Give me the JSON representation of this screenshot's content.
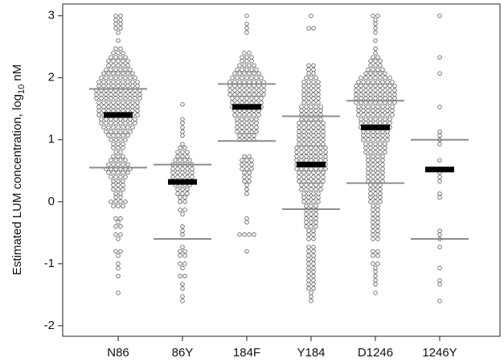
{
  "chart_data": {
    "type": "beeswarm",
    "y_label": {
      "main": "Estimated LUM concentration, log",
      "sub": "10",
      "unit": "nM"
    },
    "categories": [
      "N86",
      "86Y",
      "184F",
      "Y184",
      "D1246",
      "1246Y"
    ],
    "ylim": [
      -2.17,
      3.19
    ],
    "yticks": [
      -2,
      -1,
      0,
      1,
      2,
      3
    ],
    "dot_color": "#555555",
    "median_color": "#000000",
    "quartile_color": "#8c8c8c",
    "medians": [
      1.4,
      0.32,
      1.53,
      0.6,
      1.2,
      0.52
    ],
    "q1": [
      0.55,
      -0.6,
      0.98,
      -0.12,
      0.3,
      -0.6
    ],
    "q3": [
      1.82,
      0.6,
      1.9,
      1.38,
      1.63,
      1.0
    ],
    "values": [
      [
        3,
        3,
        2.93,
        2.93,
        2.87,
        2.87,
        2.8,
        2.8,
        2.73,
        2.6,
        2.47,
        2.47,
        2.4,
        2.4,
        2.4,
        2.33,
        2.33,
        2.33,
        2.33,
        2.27,
        2.27,
        2.27,
        2.27,
        2.27,
        2.2,
        2.2,
        2.2,
        2.2,
        2.2,
        2.13,
        2.13,
        2.13,
        2.13,
        2.13,
        2.13,
        2.07,
        2.07,
        2.07,
        2.07,
        2.07,
        2.07,
        2.07,
        2,
        2,
        2,
        2,
        2,
        2,
        2,
        2,
        1.93,
        1.93,
        1.93,
        1.93,
        1.93,
        1.93,
        1.93,
        1.93,
        1.93,
        1.87,
        1.87,
        1.87,
        1.87,
        1.87,
        1.87,
        1.87,
        1.87,
        1.87,
        1.8,
        1.8,
        1.8,
        1.8,
        1.8,
        1.8,
        1.8,
        1.8,
        1.8,
        1.8,
        1.73,
        1.73,
        1.73,
        1.73,
        1.73,
        1.73,
        1.73,
        1.73,
        1.73,
        1.73,
        1.67,
        1.67,
        1.67,
        1.67,
        1.67,
        1.67,
        1.67,
        1.67,
        1.67,
        1.67,
        1.6,
        1.6,
        1.6,
        1.6,
        1.6,
        1.6,
        1.6,
        1.6,
        1.6,
        1.53,
        1.53,
        1.53,
        1.53,
        1.53,
        1.53,
        1.53,
        1.53,
        1.53,
        1.47,
        1.47,
        1.47,
        1.47,
        1.47,
        1.47,
        1.47,
        1.47,
        1.47,
        1.4,
        1.4,
        1.4,
        1.4,
        1.4,
        1.4,
        1.4,
        1.4,
        1.4,
        1.33,
        1.33,
        1.33,
        1.33,
        1.33,
        1.33,
        1.33,
        1.33,
        1.27,
        1.27,
        1.27,
        1.27,
        1.27,
        1.27,
        1.27,
        1.27,
        1.2,
        1.2,
        1.2,
        1.2,
        1.2,
        1.2,
        1.2,
        1.13,
        1.13,
        1.13,
        1.13,
        1.13,
        1.13,
        1.07,
        1.07,
        1.07,
        1.07,
        1.07,
        1,
        1,
        1,
        1,
        0.93,
        0.93,
        0.93,
        0.87,
        0.87,
        0.87,
        0.8,
        0.8,
        0.73,
        0.73,
        0.73,
        0.67,
        0.67,
        0.67,
        0.67,
        0.6,
        0.6,
        0.6,
        0.6,
        0.6,
        0.53,
        0.53,
        0.53,
        0.53,
        0.53,
        0.53,
        0.47,
        0.47,
        0.47,
        0.47,
        0.47,
        0.4,
        0.4,
        0.4,
        0.4,
        0.33,
        0.33,
        0.33,
        0.27,
        0.27,
        0.27,
        0.2,
        0.2,
        0.2,
        0.13,
        0.13,
        0.07,
        0.07,
        0,
        0,
        0,
        0,
        -0.07,
        -0.07,
        -0.07,
        -0.27,
        -0.27,
        -0.33,
        -0.4,
        -0.4,
        -0.53,
        -0.53,
        -0.6,
        -0.8,
        -0.8,
        -0.87,
        -1,
        -1.07,
        -1.2,
        -1.47
      ],
      [
        1.57,
        1.33,
        1.27,
        1.2,
        1.13,
        1.07,
        0.93,
        0.87,
        0.87,
        0.8,
        0.8,
        0.8,
        0.73,
        0.73,
        0.73,
        0.67,
        0.67,
        0.67,
        0.67,
        0.6,
        0.6,
        0.6,
        0.6,
        0.6,
        0.53,
        0.53,
        0.53,
        0.53,
        0.53,
        0.47,
        0.47,
        0.47,
        0.47,
        0.47,
        0.4,
        0.4,
        0.4,
        0.4,
        0.4,
        0.33,
        0.33,
        0.33,
        0.33,
        0.33,
        0.27,
        0.27,
        0.27,
        0.27,
        0.2,
        0.2,
        0.2,
        0.13,
        0.13,
        0.13,
        0.07,
        0.07,
        0,
        0,
        -0.13,
        -0.13,
        -0.2,
        -0.4,
        -0.47,
        -0.53,
        -0.73,
        -0.8,
        -0.8,
        -0.87,
        -0.87,
        -1,
        -1,
        -1.07,
        -1.2,
        -1.2,
        -1.33,
        -1.4,
        -1.53,
        -1.6
      ],
      [
        3,
        2.87,
        2.8,
        2.73,
        2.4,
        2.4,
        2.33,
        2.33,
        2.33,
        2.27,
        2.27,
        2.27,
        2.2,
        2.2,
        2.2,
        2.2,
        2.13,
        2.13,
        2.13,
        2.13,
        2.13,
        2.07,
        2.07,
        2.07,
        2.07,
        2.07,
        2.07,
        2,
        2,
        2,
        2,
        2,
        2,
        2,
        1.93,
        1.93,
        1.93,
        1.93,
        1.93,
        1.93,
        1.93,
        1.93,
        1.87,
        1.87,
        1.87,
        1.87,
        1.87,
        1.87,
        1.87,
        1.87,
        1.8,
        1.8,
        1.8,
        1.8,
        1.8,
        1.8,
        1.8,
        1.8,
        1.73,
        1.73,
        1.73,
        1.73,
        1.73,
        1.73,
        1.73,
        1.73,
        1.67,
        1.67,
        1.67,
        1.67,
        1.67,
        1.67,
        1.67,
        1.6,
        1.6,
        1.6,
        1.6,
        1.6,
        1.6,
        1.6,
        1.53,
        1.53,
        1.53,
        1.53,
        1.53,
        1.53,
        1.53,
        1.47,
        1.47,
        1.47,
        1.47,
        1.47,
        1.47,
        1.4,
        1.4,
        1.4,
        1.4,
        1.4,
        1.4,
        1.33,
        1.33,
        1.33,
        1.33,
        1.33,
        1.27,
        1.27,
        1.27,
        1.27,
        1.27,
        1.2,
        1.2,
        1.2,
        1.2,
        1.2,
        1.13,
        1.13,
        1.13,
        1.13,
        1.13,
        1.07,
        1.07,
        1.07,
        1.07,
        1,
        1,
        1,
        1,
        0.73,
        0.73,
        0.67,
        0.67,
        0.67,
        0.6,
        0.6,
        0.6,
        0.53,
        0.53,
        0.53,
        0.47,
        0.47,
        0.4,
        0.4,
        0.33,
        0.33,
        0.27,
        0.2,
        0.13,
        -0.27,
        -0.33,
        -0.53,
        -0.53,
        -0.53,
        -0.53,
        -0.8
      ],
      [
        3,
        2.8,
        2.8,
        2.2,
        2.2,
        2.13,
        2.13,
        2.07,
        2.07,
        2,
        2,
        2,
        1.93,
        1.93,
        1.93,
        1.93,
        1.87,
        1.87,
        1.87,
        1.87,
        1.8,
        1.8,
        1.8,
        1.8,
        1.73,
        1.73,
        1.73,
        1.73,
        1.67,
        1.67,
        1.67,
        1.67,
        1.6,
        1.6,
        1.6,
        1.6,
        1.53,
        1.53,
        1.53,
        1.53,
        1.53,
        1.47,
        1.47,
        1.47,
        1.47,
        1.47,
        1.4,
        1.4,
        1.4,
        1.4,
        1.4,
        1.33,
        1.33,
        1.33,
        1.33,
        1.33,
        1.27,
        1.27,
        1.27,
        1.27,
        1.27,
        1.27,
        1.2,
        1.2,
        1.2,
        1.2,
        1.2,
        1.2,
        1.13,
        1.13,
        1.13,
        1.13,
        1.13,
        1.13,
        1.07,
        1.07,
        1.07,
        1.07,
        1.07,
        1.07,
        1,
        1,
        1,
        1,
        1,
        1,
        0.93,
        0.93,
        0.93,
        0.93,
        0.93,
        0.93,
        0.87,
        0.87,
        0.87,
        0.87,
        0.87,
        0.87,
        0.87,
        0.8,
        0.8,
        0.8,
        0.8,
        0.8,
        0.8,
        0.8,
        0.73,
        0.73,
        0.73,
        0.73,
        0.73,
        0.73,
        0.73,
        0.67,
        0.67,
        0.67,
        0.67,
        0.67,
        0.67,
        0.67,
        0.6,
        0.6,
        0.6,
        0.6,
        0.6,
        0.6,
        0.6,
        0.53,
        0.53,
        0.53,
        0.53,
        0.53,
        0.53,
        0.53,
        0.47,
        0.47,
        0.47,
        0.47,
        0.47,
        0.47,
        0.4,
        0.4,
        0.4,
        0.4,
        0.4,
        0.4,
        0.33,
        0.33,
        0.33,
        0.33,
        0.33,
        0.33,
        0.27,
        0.27,
        0.27,
        0.27,
        0.27,
        0.2,
        0.2,
        0.2,
        0.2,
        0.2,
        0.13,
        0.13,
        0.13,
        0.13,
        0.07,
        0.07,
        0.07,
        0.07,
        0,
        0,
        0,
        0,
        -0.07,
        -0.07,
        -0.07,
        -0.13,
        -0.13,
        -0.13,
        -0.2,
        -0.2,
        -0.2,
        -0.27,
        -0.27,
        -0.27,
        -0.33,
        -0.33,
        -0.33,
        -0.4,
        -0.4,
        -0.4,
        -0.47,
        -0.47,
        -0.53,
        -0.53,
        -0.6,
        -0.6,
        -0.73,
        -0.73,
        -0.8,
        -0.8,
        -0.87,
        -0.87,
        -0.93,
        -0.93,
        -1,
        -1,
        -1.07,
        -1.07,
        -1.13,
        -1.13,
        -1.2,
        -1.2,
        -1.27,
        -1.27,
        -1.33,
        -1.33,
        -1.4,
        -1.4,
        -1.47,
        -1.53,
        -1.6
      ],
      [
        3,
        3,
        2.93,
        2.87,
        2.8,
        2.73,
        2.6,
        2.47,
        2.4,
        2.33,
        2.33,
        2.27,
        2.27,
        2.27,
        2.2,
        2.2,
        2.2,
        2.13,
        2.13,
        2.13,
        2.13,
        2.07,
        2.07,
        2.07,
        2.07,
        2.07,
        2,
        2,
        2,
        2,
        2,
        2,
        2,
        1.93,
        1.93,
        1.93,
        1.93,
        1.93,
        1.93,
        1.93,
        1.93,
        1.87,
        1.87,
        1.87,
        1.87,
        1.87,
        1.87,
        1.87,
        1.87,
        1.87,
        1.8,
        1.8,
        1.8,
        1.8,
        1.8,
        1.8,
        1.8,
        1.8,
        1.8,
        1.73,
        1.73,
        1.73,
        1.73,
        1.73,
        1.73,
        1.73,
        1.73,
        1.73,
        1.67,
        1.67,
        1.67,
        1.67,
        1.67,
        1.67,
        1.67,
        1.67,
        1.67,
        1.6,
        1.6,
        1.6,
        1.6,
        1.6,
        1.6,
        1.6,
        1.6,
        1.6,
        1.53,
        1.53,
        1.53,
        1.53,
        1.53,
        1.53,
        1.53,
        1.53,
        1.47,
        1.47,
        1.47,
        1.47,
        1.47,
        1.47,
        1.47,
        1.47,
        1.4,
        1.4,
        1.4,
        1.4,
        1.4,
        1.4,
        1.4,
        1.4,
        1.33,
        1.33,
        1.33,
        1.33,
        1.33,
        1.33,
        1.33,
        1.27,
        1.27,
        1.27,
        1.27,
        1.27,
        1.27,
        1.27,
        1.2,
        1.2,
        1.2,
        1.2,
        1.2,
        1.2,
        1.2,
        1.13,
        1.13,
        1.13,
        1.13,
        1.13,
        1.13,
        1.07,
        1.07,
        1.07,
        1.07,
        1.07,
        1.07,
        1,
        1,
        1,
        1,
        1,
        1,
        0.93,
        0.93,
        0.93,
        0.93,
        0.93,
        0.87,
        0.87,
        0.87,
        0.87,
        0.87,
        0.8,
        0.8,
        0.8,
        0.8,
        0.8,
        0.73,
        0.73,
        0.73,
        0.73,
        0.67,
        0.67,
        0.67,
        0.67,
        0.6,
        0.6,
        0.6,
        0.6,
        0.53,
        0.53,
        0.53,
        0.53,
        0.47,
        0.47,
        0.47,
        0.47,
        0.4,
        0.4,
        0.4,
        0.4,
        0.33,
        0.33,
        0.33,
        0.33,
        0.27,
        0.27,
        0.27,
        0.2,
        0.2,
        0.2,
        0.13,
        0.13,
        0.13,
        0.07,
        0.07,
        0.07,
        0,
        0,
        0,
        -0.07,
        -0.07,
        -0.13,
        -0.13,
        -0.2,
        -0.2,
        -0.27,
        -0.27,
        -0.33,
        -0.33,
        -0.4,
        -0.4,
        -0.47,
        -0.47,
        -0.53,
        -0.53,
        -0.6,
        -0.6,
        -0.8,
        -0.8,
        -0.87,
        -0.87,
        -1,
        -1,
        -1.07,
        -1.13,
        -1.2,
        -1.27,
        -1.33,
        -1.47
      ],
      [
        3,
        2.33,
        2.07,
        1.53,
        1.13,
        1.07,
        1,
        0.93,
        0.67,
        0.53,
        0.47,
        0.4,
        0.33,
        0.13,
        0.07,
        -0.47,
        -0.53,
        -0.6,
        -0.73,
        -1.07,
        -1.27,
        -1.33,
        -1.6
      ]
    ]
  }
}
